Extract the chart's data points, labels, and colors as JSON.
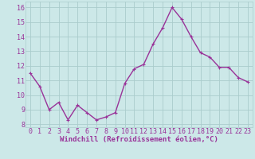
{
  "x": [
    0,
    1,
    2,
    3,
    4,
    5,
    6,
    7,
    8,
    9,
    10,
    11,
    12,
    13,
    14,
    15,
    16,
    17,
    18,
    19,
    20,
    21,
    22,
    23
  ],
  "y": [
    11.5,
    10.6,
    9.0,
    9.5,
    8.3,
    9.3,
    8.8,
    8.3,
    8.5,
    8.8,
    10.8,
    11.8,
    12.1,
    13.5,
    14.6,
    16.0,
    15.2,
    14.0,
    12.9,
    12.6,
    11.9,
    11.9,
    11.2,
    10.9
  ],
  "line_color": "#993399",
  "marker_color": "#993399",
  "bg_color": "#cce8e8",
  "grid_color": "#aacccc",
  "xlabel": "Windchill (Refroidissement éolien,°C)",
  "xlim": [
    -0.5,
    23.5
  ],
  "ylim": [
    7.8,
    16.4
  ],
  "yticks": [
    8,
    9,
    10,
    11,
    12,
    13,
    14,
    15,
    16
  ],
  "xticks": [
    0,
    1,
    2,
    3,
    4,
    5,
    6,
    7,
    8,
    9,
    10,
    11,
    12,
    13,
    14,
    15,
    16,
    17,
    18,
    19,
    20,
    21,
    22,
    23
  ],
  "tick_label_color": "#993399",
  "xlabel_color": "#993399",
  "xlabel_fontsize": 6.5,
  "tick_fontsize": 6.0,
  "line_width": 1.0,
  "marker_size": 2.5
}
